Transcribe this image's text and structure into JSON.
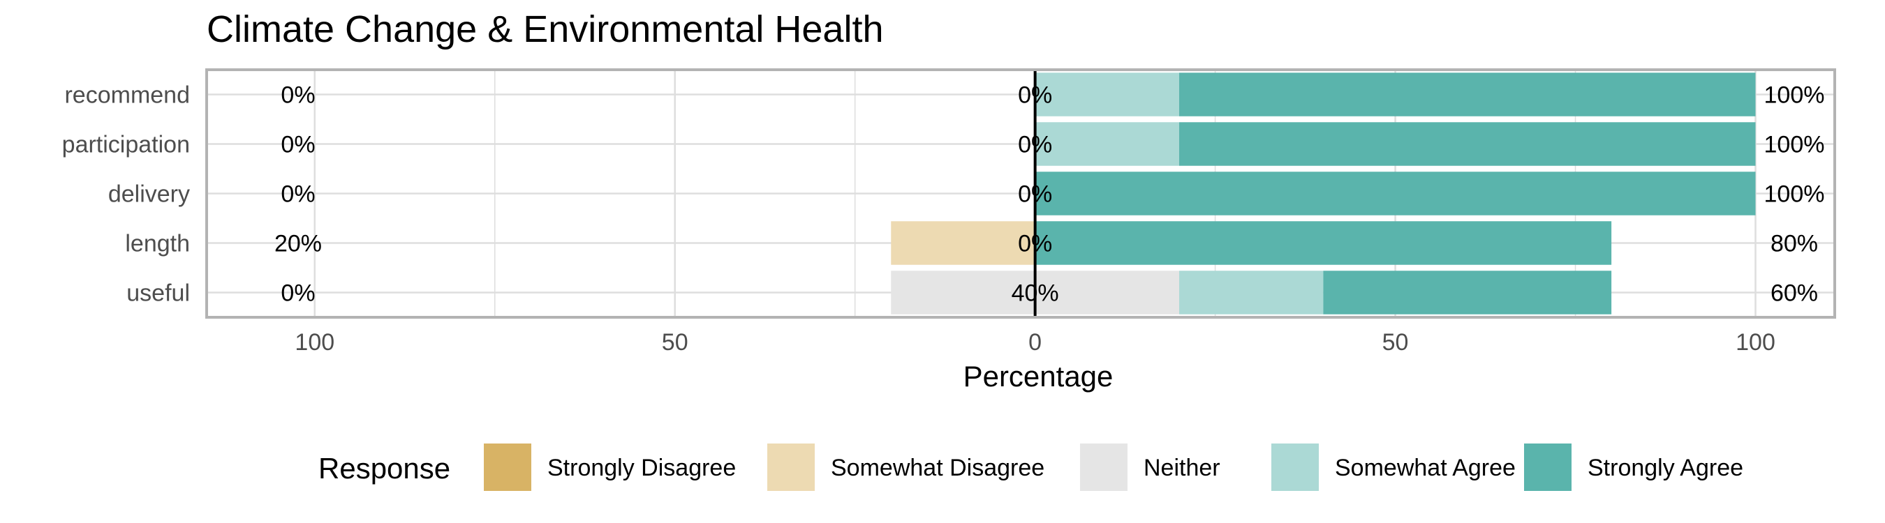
{
  "chart_data": {
    "type": "bar",
    "orientation": "horizontal",
    "stacking": "diverging",
    "title": "Climate Change & Environmental Health",
    "xlabel": "Percentage",
    "xlim": [
      -115,
      111
    ],
    "x_ticks": [
      -100,
      -50,
      0,
      50,
      100
    ],
    "x_tick_labels": [
      "100",
      "50",
      "0",
      "50",
      "100"
    ],
    "grid": true,
    "legend_position": "bottom",
    "legend_title": "Response",
    "categories": [
      "recommend",
      "participation",
      "delivery",
      "length",
      "useful"
    ],
    "series": [
      {
        "name": "Strongly Disagree",
        "color": "#D8B365",
        "values": [
          0,
          0,
          0,
          0,
          0
        ]
      },
      {
        "name": "Somewhat Disagree",
        "color": "#EDDAB2",
        "values": [
          0,
          0,
          0,
          20,
          0
        ]
      },
      {
        "name": "Neither",
        "color": "#E5E5E5",
        "values": [
          0,
          0,
          0,
          0,
          40
        ]
      },
      {
        "name": "Somewhat Agree",
        "color": "#ABD9D5",
        "values": [
          20,
          20,
          0,
          0,
          20
        ]
      },
      {
        "name": "Strongly Agree",
        "color": "#5AB4AC",
        "values": [
          80,
          80,
          100,
          80,
          40
        ]
      }
    ],
    "left_labels": [
      "0%",
      "0%",
      "0%",
      "20%",
      "0%"
    ],
    "center_labels": [
      "0%",
      "0%",
      "0%",
      "0%",
      "40%"
    ],
    "right_labels": [
      "100%",
      "100%",
      "100%",
      "80%",
      "60%"
    ]
  }
}
